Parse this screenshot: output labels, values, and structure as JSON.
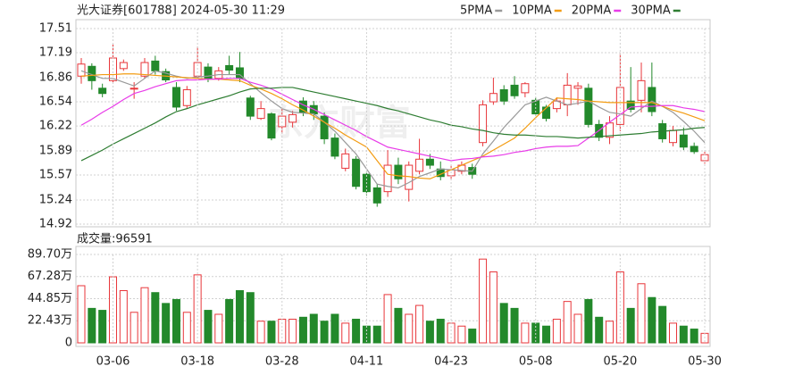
{
  "chart_data": [
    {
      "type": "candlestick",
      "title": "光大证券[601788] 2024-05-30 11:29",
      "watermark": "东方财富",
      "up_color": "#e8363a",
      "down_color": "#23892b",
      "open": [
        16.88,
        17.01,
        16.72,
        16.82,
        16.98,
        16.71,
        16.88,
        17.08,
        16.94,
        16.73,
        16.49,
        16.88,
        17.0,
        16.85,
        17.02,
        16.99,
        16.59,
        16.32,
        16.38,
        16.21,
        16.27,
        16.55,
        16.49,
        16.35,
        16.06,
        15.66,
        15.78,
        15.58,
        15.4,
        15.35,
        15.7,
        15.38,
        15.62,
        15.78,
        15.65,
        15.56,
        15.62,
        15.67,
        16.0,
        16.54,
        16.7,
        16.76,
        16.66,
        16.56,
        16.47,
        16.45,
        16.5,
        16.72,
        16.72,
        16.24,
        16.07,
        16.24,
        16.55,
        16.56,
        16.73,
        16.25,
        16.0,
        16.1,
        15.95,
        15.76
      ],
      "high": [
        17.12,
        17.05,
        16.78,
        17.3,
        17.1,
        16.8,
        17.12,
        17.15,
        16.98,
        16.8,
        16.75,
        17.27,
        17.05,
        17.0,
        17.15,
        17.2,
        16.62,
        16.55,
        16.4,
        16.45,
        16.42,
        16.6,
        16.55,
        16.4,
        16.12,
        15.92,
        15.82,
        15.62,
        15.45,
        15.9,
        15.8,
        15.75,
        16.05,
        15.85,
        15.75,
        15.7,
        15.75,
        15.72,
        16.56,
        16.86,
        16.76,
        16.88,
        16.8,
        16.6,
        16.5,
        16.6,
        16.92,
        16.8,
        16.78,
        16.3,
        16.35,
        17.18,
        17.0,
        17.06,
        17.06,
        16.3,
        16.22,
        16.2,
        16.0,
        15.9
      ],
      "low": [
        16.78,
        16.7,
        16.6,
        16.78,
        16.95,
        16.58,
        16.85,
        16.9,
        16.8,
        16.42,
        16.45,
        16.85,
        16.8,
        16.82,
        16.9,
        16.8,
        16.3,
        16.3,
        16.03,
        16.12,
        16.2,
        16.35,
        16.3,
        15.98,
        15.78,
        15.62,
        15.38,
        15.3,
        15.15,
        15.28,
        15.45,
        15.22,
        15.58,
        15.65,
        15.5,
        15.5,
        15.58,
        15.52,
        15.95,
        16.5,
        16.5,
        16.58,
        16.6,
        16.35,
        16.28,
        16.4,
        16.35,
        16.5,
        16.2,
        16.02,
        15.98,
        16.15,
        16.4,
        16.4,
        16.35,
        16.0,
        15.95,
        15.9,
        15.85,
        15.72
      ],
      "close": [
        17.04,
        16.82,
        16.65,
        17.12,
        17.06,
        16.72,
        17.06,
        16.95,
        16.83,
        16.47,
        16.7,
        17.06,
        16.84,
        16.95,
        16.96,
        16.85,
        16.35,
        16.45,
        16.06,
        16.35,
        16.37,
        16.4,
        16.38,
        16.05,
        15.82,
        15.85,
        15.42,
        15.35,
        15.2,
        15.7,
        15.52,
        15.7,
        15.78,
        15.7,
        15.55,
        15.64,
        15.7,
        15.58,
        16.5,
        16.65,
        16.55,
        16.62,
        16.78,
        16.38,
        16.32,
        16.55,
        16.76,
        16.75,
        16.24,
        16.07,
        16.26,
        16.73,
        16.44,
        16.82,
        16.41,
        16.05,
        16.16,
        15.94,
        15.88,
        15.84
      ],
      "series": [
        {
          "name": "5PMA",
          "color": "#999999",
          "values": [
            16.95,
            16.9,
            16.85,
            16.85,
            16.8,
            16.75,
            16.85,
            16.95,
            16.92,
            16.88,
            16.85,
            16.87,
            16.88,
            16.9,
            16.9,
            16.9,
            16.78,
            16.66,
            16.55,
            16.45,
            16.4,
            16.39,
            16.38,
            16.27,
            16.15,
            16.0,
            15.85,
            15.65,
            15.45,
            15.42,
            15.4,
            15.47,
            15.55,
            15.6,
            15.65,
            15.64,
            15.63,
            15.62,
            15.85,
            16.02,
            16.2,
            16.35,
            16.5,
            16.55,
            16.6,
            16.55,
            16.5,
            16.52,
            16.55,
            16.47,
            16.4,
            16.38,
            16.35,
            16.45,
            16.55,
            16.48,
            16.4,
            16.28,
            16.15,
            16.0
          ]
        },
        {
          "name": "10PMA",
          "color": "#f39c12",
          "values": [
            16.88,
            16.89,
            16.9,
            16.9,
            16.91,
            16.91,
            16.9,
            16.89,
            16.88,
            16.87,
            16.86,
            16.85,
            16.84,
            16.84,
            16.83,
            16.82,
            16.76,
            16.71,
            16.65,
            16.58,
            16.5,
            16.43,
            16.35,
            16.27,
            16.19,
            16.1,
            16.02,
            15.94,
            15.76,
            15.58,
            15.56,
            15.55,
            15.53,
            15.52,
            15.58,
            15.64,
            15.7,
            15.76,
            15.82,
            15.9,
            15.98,
            16.06,
            16.19,
            16.33,
            16.46,
            16.59,
            16.58,
            16.57,
            16.55,
            16.54,
            16.53,
            16.53,
            16.53,
            16.53,
            16.53,
            16.48,
            16.43,
            16.39,
            16.34,
            16.29
          ]
        },
        {
          "name": "20PMA",
          "color": "#e83ce8",
          "values": [
            16.23,
            16.31,
            16.4,
            16.48,
            16.57,
            16.65,
            16.69,
            16.74,
            16.78,
            16.82,
            16.83,
            16.83,
            16.84,
            16.84,
            16.85,
            16.85,
            16.8,
            16.76,
            16.71,
            16.64,
            16.57,
            16.5,
            16.44,
            16.37,
            16.3,
            16.23,
            16.16,
            16.08,
            16.01,
            15.94,
            15.91,
            15.88,
            15.85,
            15.82,
            15.79,
            15.76,
            15.78,
            15.79,
            15.81,
            15.82,
            15.84,
            15.87,
            15.89,
            15.92,
            15.94,
            15.95,
            15.95,
            15.96,
            16.06,
            16.16,
            16.27,
            16.37,
            16.47,
            16.48,
            16.48,
            16.49,
            16.49,
            16.46,
            16.44,
            16.41
          ]
        },
        {
          "name": "30PMA",
          "color": "#2e7d32",
          "values": [
            15.76,
            15.83,
            15.9,
            15.98,
            16.05,
            16.12,
            16.19,
            16.26,
            16.34,
            16.41,
            16.45,
            16.5,
            16.54,
            16.58,
            16.62,
            16.67,
            16.71,
            16.72,
            16.72,
            16.73,
            16.73,
            16.7,
            16.67,
            16.64,
            16.61,
            16.58,
            16.55,
            16.52,
            16.49,
            16.45,
            16.42,
            16.38,
            16.34,
            16.3,
            16.27,
            16.23,
            16.21,
            16.18,
            16.16,
            16.13,
            16.11,
            16.1,
            16.1,
            16.09,
            16.08,
            16.08,
            16.07,
            16.06,
            16.07,
            16.08,
            16.09,
            16.1,
            16.11,
            16.12,
            16.14,
            16.15,
            16.16,
            16.17,
            16.19,
            16.2
          ]
        }
      ],
      "ylim": [
        14.92,
        17.51
      ],
      "yticks": [
        17.51,
        17.19,
        16.86,
        16.54,
        16.22,
        15.89,
        15.57,
        15.24,
        14.92
      ],
      "grid": true
    },
    {
      "type": "bar",
      "title": "成交量:96591",
      "categories": [
        null,
        null,
        null,
        "03-06",
        null,
        null,
        null,
        null,
        null,
        null,
        null,
        "03-18",
        null,
        null,
        null,
        null,
        null,
        null,
        null,
        "03-28",
        null,
        null,
        null,
        null,
        null,
        null,
        null,
        "04-11",
        null,
        null,
        null,
        null,
        null,
        null,
        null,
        "04-23",
        null,
        null,
        null,
        null,
        null,
        null,
        null,
        "05-08",
        null,
        null,
        null,
        null,
        null,
        null,
        null,
        "05-20",
        null,
        null,
        null,
        null,
        null,
        null,
        null,
        "05-30"
      ],
      "values": [
        58,
        35,
        33,
        67,
        53,
        31,
        56,
        51,
        40,
        44,
        31,
        69,
        33,
        29,
        44,
        53,
        51,
        22,
        22,
        24,
        24,
        26,
        29,
        22,
        29,
        20,
        24,
        17,
        17,
        49,
        35,
        29,
        38,
        22,
        24,
        20,
        17,
        14,
        85,
        72,
        40,
        35,
        20,
        20,
        17,
        24,
        42,
        29,
        44,
        26,
        22,
        72,
        35,
        60,
        46,
        37,
        20,
        17,
        14,
        9.66
      ],
      "ylim": [
        0,
        89.7
      ],
      "yticks": [
        {
          "value": 89.7,
          "label": "89.70万"
        },
        {
          "value": 67.28,
          "label": "67.28万"
        },
        {
          "value": 44.85,
          "label": "44.85万"
        },
        {
          "value": 22.43,
          "label": "22.43万"
        },
        0
      ],
      "grid": true
    }
  ]
}
